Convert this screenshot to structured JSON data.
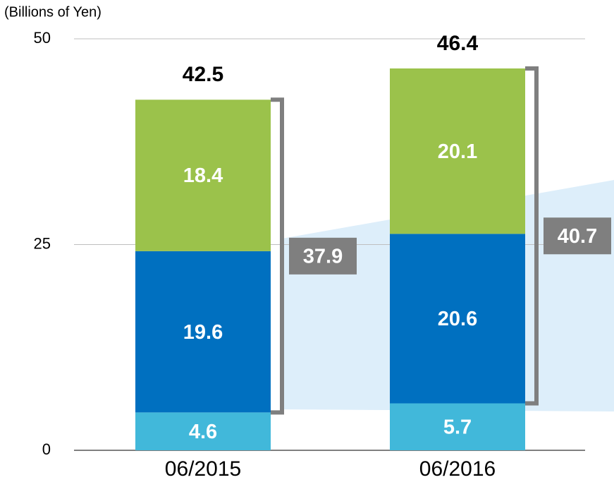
{
  "chart_data": {
    "type": "stacked_bar",
    "y_axis_label": "(Billions of Yen)",
    "categories": [
      "06/2015",
      "06/2016"
    ],
    "series": [
      {
        "color": "#41b8da",
        "values": [
          4.6,
          5.7
        ]
      },
      {
        "color": "#0070c0",
        "values": [
          19.6,
          20.6
        ]
      },
      {
        "color": "#9bc24b",
        "values": [
          18.4,
          20.1
        ]
      }
    ],
    "totals": [
      42.5,
      46.4
    ],
    "bracket_values": [
      37.9,
      40.7
    ],
    "bracket_color": "#7f7f7f",
    "ylim": [
      0,
      50
    ],
    "yticks": [
      0,
      25,
      50
    ],
    "grid": true
  }
}
